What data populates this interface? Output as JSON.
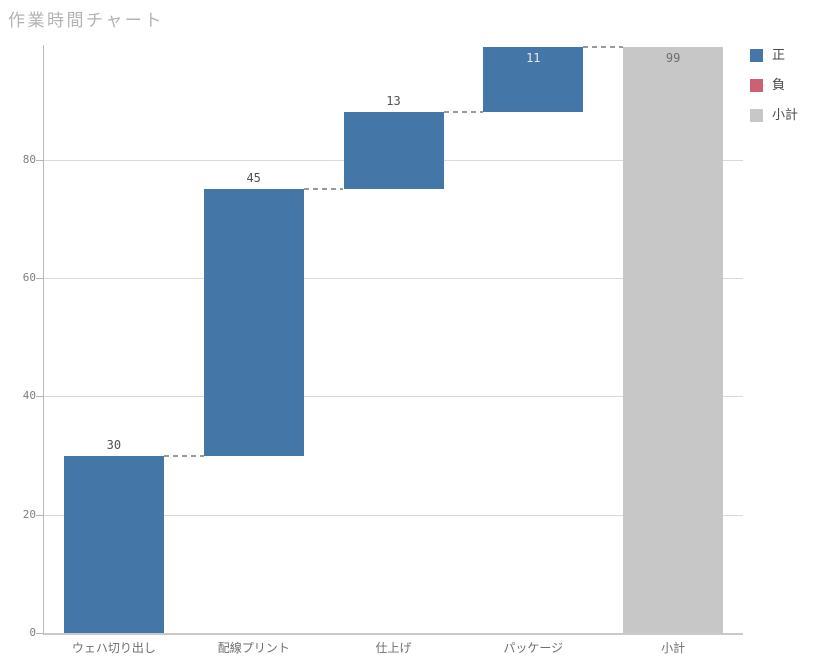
{
  "page": {
    "title": "作業時間チャート"
  },
  "legend": {
    "items": [
      {
        "key": "positive",
        "label": "正",
        "color": "#4477a8"
      },
      {
        "key": "negative",
        "label": "負",
        "color": "#cd6073"
      },
      {
        "key": "subtotal",
        "label": "小計",
        "color": "#c7c7c7"
      }
    ]
  },
  "chart_data": {
    "type": "waterfall",
    "title": "作業時間チャート",
    "categories": [
      "ウェハ切り出し",
      "配線プリント",
      "仕上げ",
      "パッケージ",
      "小計"
    ],
    "measures": [
      "relative",
      "relative",
      "relative",
      "relative",
      "total"
    ],
    "values": [
      30,
      45,
      13,
      11,
      99
    ],
    "value_labels": [
      "30",
      "45",
      "13",
      "11",
      "99"
    ],
    "cumulative": [
      30,
      75,
      88,
      99,
      99
    ],
    "text_positions": [
      "outside",
      "outside",
      "outside",
      "inside",
      "inside"
    ],
    "y_ticks": [
      0,
      20,
      40,
      60,
      80
    ],
    "ylim": [
      0,
      99.4
    ],
    "grid": true,
    "legend_position": "right",
    "connector": {
      "style": "dashed",
      "color": "#9a9a9a"
    },
    "colors": {
      "increasing": "#4477a8",
      "decreasing": "#cd6073",
      "total": "#c7c7c7"
    },
    "text_colors": {
      "outside": "#515151",
      "inside": "#e9e9e9",
      "inside_total": "#6e6e6e"
    },
    "style": {
      "grid_color": "#d9d9d9",
      "axis_line_color": "#b9b9b9",
      "tick_label_color": "#7f7f7f",
      "title_color": "#b3b3b3"
    }
  }
}
